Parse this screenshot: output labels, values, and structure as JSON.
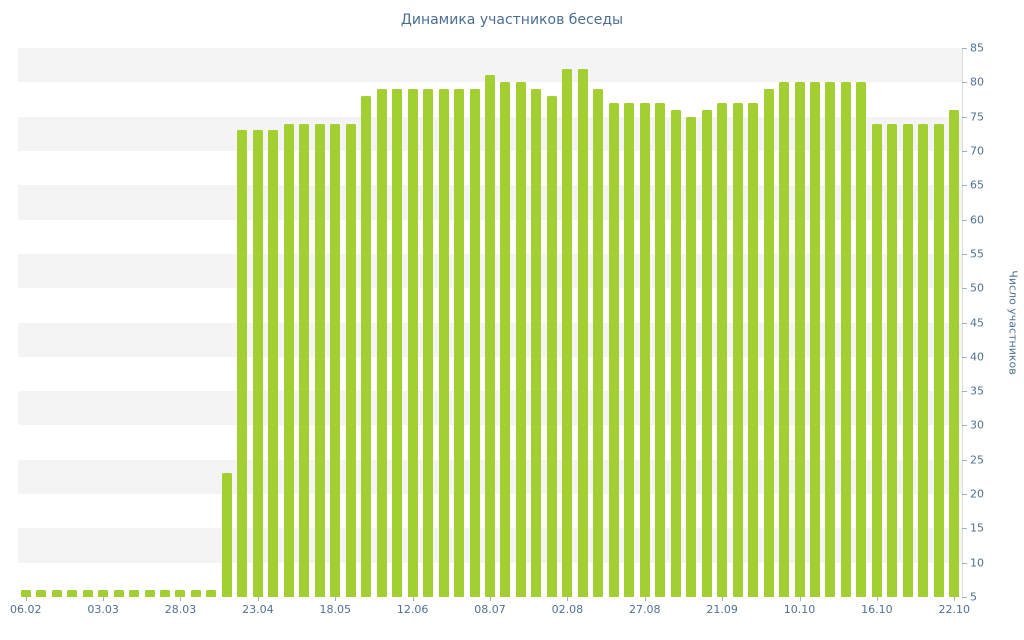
{
  "chart_data": {
    "type": "bar",
    "title": "Динамика участников беседы",
    "ylabel": "Число участников",
    "xlabel": "",
    "ylim": [
      5,
      85
    ],
    "ytick_step": 5,
    "y_axis_side": "right",
    "grid": "striped-bands",
    "legend": "none",
    "x_tick_labels": [
      "06.02",
      "03.03",
      "28.03",
      "23.04",
      "18.05",
      "12.06",
      "08.07",
      "02.08",
      "27.08",
      "21.09",
      "10.10",
      "16.10",
      "22.10"
    ],
    "x_tick_every": 5,
    "values": [
      6,
      6,
      6,
      6,
      6,
      6,
      6,
      6,
      6,
      6,
      6,
      6,
      6,
      23,
      73,
      73,
      73,
      74,
      74,
      74,
      74,
      74,
      78,
      79,
      79,
      79,
      79,
      79,
      79,
      79,
      81,
      80,
      80,
      79,
      78,
      82,
      82,
      79,
      77,
      77,
      77,
      77,
      76,
      75,
      76,
      77,
      77,
      77,
      79,
      80,
      80,
      80,
      80,
      80,
      80,
      74,
      74,
      74,
      74,
      74,
      76
    ],
    "colors": {
      "bar": "#a4cf32",
      "stripe": "#f4f4f4",
      "tick_text": "#52718f",
      "title_text": "#4d6e93"
    }
  }
}
